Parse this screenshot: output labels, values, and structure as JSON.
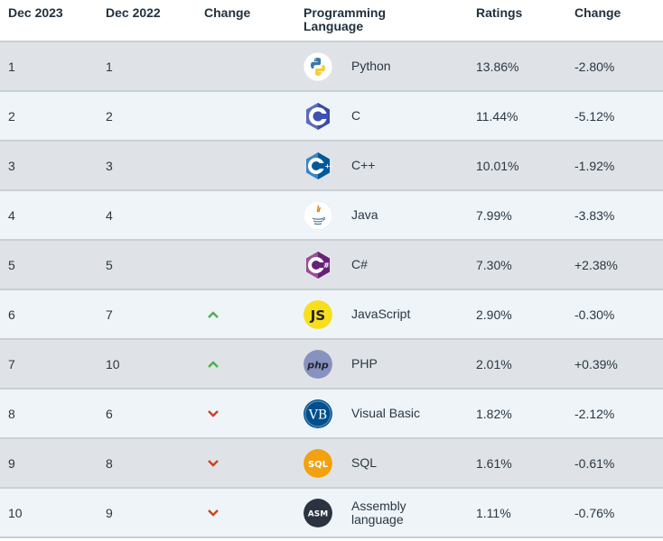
{
  "headers": {
    "dec2023": "Dec 2023",
    "dec2022": "Dec 2022",
    "change": "Change",
    "language_line1": "Programming",
    "language_line2": "Language",
    "ratings": "Ratings",
    "change_pct": "Change"
  },
  "colors": {
    "up": "#4caf50",
    "down": "#d04020"
  },
  "rows": [
    {
      "dec2023": "1",
      "dec2022": "1",
      "trend": "none",
      "icon": "python-icon",
      "language": "Python",
      "rating": "13.86%",
      "change": "-2.80%"
    },
    {
      "dec2023": "2",
      "dec2022": "2",
      "trend": "none",
      "icon": "c-icon",
      "language": "C",
      "rating": "11.44%",
      "change": "-5.12%"
    },
    {
      "dec2023": "3",
      "dec2022": "3",
      "trend": "none",
      "icon": "cpp-icon",
      "language": "C++",
      "rating": "10.01%",
      "change": "-1.92%"
    },
    {
      "dec2023": "4",
      "dec2022": "4",
      "trend": "none",
      "icon": "java-icon",
      "language": "Java",
      "rating": "7.99%",
      "change": "-3.83%"
    },
    {
      "dec2023": "5",
      "dec2022": "5",
      "trend": "none",
      "icon": "csharp-icon",
      "language": "C#",
      "rating": "7.30%",
      "change": "+2.38%"
    },
    {
      "dec2023": "6",
      "dec2022": "7",
      "trend": "up",
      "icon": "javascript-icon",
      "language": "JavaScript",
      "rating": "2.90%",
      "change": "-0.30%"
    },
    {
      "dec2023": "7",
      "dec2022": "10",
      "trend": "up",
      "icon": "php-icon",
      "language": "PHP",
      "rating": "2.01%",
      "change": "+0.39%"
    },
    {
      "dec2023": "8",
      "dec2022": "6",
      "trend": "down",
      "icon": "visual-basic-icon",
      "language": "Visual Basic",
      "rating": "1.82%",
      "change": "-2.12%"
    },
    {
      "dec2023": "9",
      "dec2022": "8",
      "trend": "down",
      "icon": "sql-icon",
      "language": "SQL",
      "rating": "1.61%",
      "change": "-0.61%"
    },
    {
      "dec2023": "10",
      "dec2022": "9",
      "trend": "down",
      "icon": "assembly-icon",
      "language": "Assembly language",
      "rating": "1.11%",
      "change": "-0.76%"
    }
  ]
}
